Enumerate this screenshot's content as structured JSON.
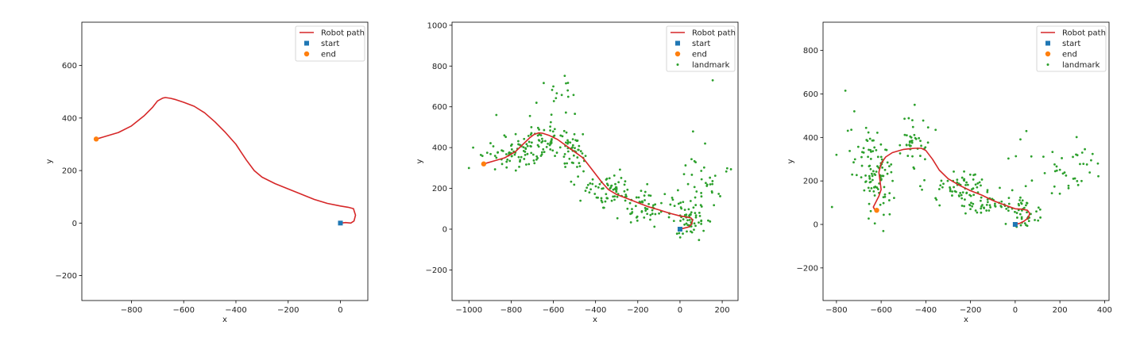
{
  "chart_data": [
    {
      "type": "line",
      "xlabel": "x",
      "ylabel": "y",
      "xlim": [
        -990,
        105
      ],
      "ylim": [
        -295,
        765
      ],
      "xticks": [
        -800,
        -600,
        -400,
        -200,
        0
      ],
      "xtick_labels": [
        "−800",
        "−600",
        "−400",
        "−200",
        "0"
      ],
      "yticks": [
        -200,
        0,
        200,
        400,
        600
      ],
      "ytick_labels": [
        "−200",
        "0",
        "200",
        "400",
        "600"
      ],
      "legend": [
        "Robot path",
        "start",
        "end"
      ],
      "legend_position": "top-right",
      "colors": {
        "path": "#d62728",
        "start": "#1f77b4",
        "end": "#ff7f0e",
        "landmark": "#2ca02c"
      },
      "series": [
        {
          "name": "Robot path",
          "x": [
            0,
            20,
            40,
            52,
            58,
            50,
            30,
            0,
            -50,
            -100,
            -150,
            -200,
            -250,
            -300,
            -330,
            -360,
            -380,
            -400,
            -440,
            -480,
            -520,
            -560,
            -600,
            -630,
            -650,
            -670,
            -680,
            -700,
            -720,
            -750,
            -800,
            -850,
            -900,
            -935
          ],
          "y": [
            0,
            2,
            0,
            8,
            30,
            55,
            60,
            65,
            75,
            90,
            110,
            130,
            150,
            175,
            200,
            240,
            270,
            300,
            345,
            385,
            420,
            445,
            460,
            470,
            475,
            478,
            476,
            465,
            440,
            410,
            370,
            345,
            330,
            320
          ]
        },
        {
          "name": "start",
          "x": [
            0
          ],
          "y": [
            0
          ]
        },
        {
          "name": "end",
          "x": [
            -935
          ],
          "y": [
            320
          ]
        }
      ]
    },
    {
      "type": "line",
      "xlabel": "x",
      "ylabel": "y",
      "xlim": [
        -1080,
        275
      ],
      "ylim": [
        -350,
        1015
      ],
      "xticks": [
        -1000,
        -800,
        -600,
        -400,
        -200,
        0,
        200
      ],
      "xtick_labels": [
        "−1000",
        "−800",
        "−600",
        "−400",
        "−200",
        "0",
        "200"
      ],
      "yticks": [
        -200,
        0,
        200,
        400,
        600,
        800,
        1000
      ],
      "ytick_labels": [
        "−200",
        "0",
        "200",
        "400",
        "600",
        "800",
        "1000"
      ],
      "legend": [
        "Robot path",
        "start",
        "end",
        "landmark"
      ],
      "legend_position": "top-right",
      "series": [
        {
          "name": "Robot path",
          "x": [
            0,
            20,
            40,
            55,
            60,
            52,
            30,
            0,
            -50,
            -100,
            -150,
            -200,
            -250,
            -300,
            -340,
            -370,
            -400,
            -430,
            -460,
            -500,
            -540,
            -580,
            -620,
            -650,
            -670,
            -690,
            -710,
            -740,
            -780,
            -830,
            -880,
            -930
          ],
          "y": [
            0,
            5,
            10,
            25,
            45,
            55,
            60,
            65,
            78,
            95,
            110,
            130,
            150,
            170,
            195,
            230,
            270,
            310,
            350,
            380,
            410,
            440,
            460,
            470,
            472,
            465,
            450,
            420,
            380,
            350,
            335,
            320
          ]
        },
        {
          "name": "start",
          "x": [
            0
          ],
          "y": [
            0
          ]
        },
        {
          "name": "end",
          "x": [
            -930
          ],
          "y": [
            320
          ]
        },
        {
          "name": "landmark",
          "clusters": [
            {
              "cx": -780,
              "cy": 370,
              "sx": 70,
              "sy": 40,
              "n": 70
            },
            {
              "cx": -620,
              "cy": 440,
              "sx": 60,
              "sy": 50,
              "n": 60
            },
            {
              "cx": -500,
              "cy": 380,
              "sx": 40,
              "sy": 50,
              "n": 40
            },
            {
              "cx": -330,
              "cy": 190,
              "sx": 80,
              "sy": 35,
              "n": 70
            },
            {
              "cx": -150,
              "cy": 110,
              "sx": 80,
              "sy": 35,
              "n": 60
            },
            {
              "cx": 50,
              "cy": 40,
              "sx": 40,
              "sy": 40,
              "n": 50
            },
            {
              "cx": 120,
              "cy": 200,
              "sx": 60,
              "sy": 90,
              "n": 40
            },
            {
              "cx": -560,
              "cy": 650,
              "sx": 50,
              "sy": 50,
              "n": 12
            }
          ],
          "extra_points": [
            [
              -1000,
              300
            ],
            [
              -870,
              560
            ],
            [
              -540,
              715
            ],
            [
              -600,
              700
            ],
            [
              155,
              730
            ],
            [
              -980,
              400
            ],
            [
              -680,
              620
            ]
          ]
        }
      ]
    },
    {
      "type": "line",
      "xlabel": "x",
      "ylabel": "y",
      "xlim": [
        -860,
        420
      ],
      "ylim": [
        -350,
        930
      ],
      "xticks": [
        -800,
        -600,
        -400,
        -200,
        0,
        200,
        400
      ],
      "xtick_labels": [
        "−800",
        "−600",
        "−400",
        "−200",
        "0",
        "200",
        "400"
      ],
      "yticks": [
        -200,
        0,
        200,
        400,
        600,
        800
      ],
      "ytick_labels": [
        "−200",
        "0",
        "200",
        "400",
        "600",
        "800"
      ],
      "legend": [
        "Robot path",
        "start",
        "end",
        "landmark"
      ],
      "legend_position": "top-right",
      "series": [
        {
          "name": "Robot path",
          "x": [
            0,
            20,
            40,
            58,
            65,
            55,
            30,
            0,
            -50,
            -100,
            -150,
            -200,
            -250,
            -300,
            -340,
            -370,
            -400,
            -420,
            -450,
            -500,
            -550,
            -580,
            -600,
            -610,
            -605,
            -600,
            -610,
            -625,
            -635,
            -630,
            -620
          ],
          "y": [
            0,
            5,
            15,
            30,
            50,
            65,
            70,
            72,
            90,
            110,
            135,
            155,
            180,
            210,
            250,
            300,
            340,
            350,
            350,
            345,
            330,
            310,
            280,
            240,
            200,
            160,
            130,
            100,
            80,
            70,
            65
          ]
        },
        {
          "name": "start",
          "x": [
            0
          ],
          "y": [
            0
          ]
        },
        {
          "name": "end",
          "x": [
            -620
          ],
          "y": [
            65
          ]
        },
        {
          "name": "landmark",
          "clusters": [
            {
              "cx": -610,
              "cy": 200,
              "sx": 40,
              "sy": 80,
              "n": 80
            },
            {
              "cx": -450,
              "cy": 380,
              "sx": 40,
              "sy": 60,
              "n": 40
            },
            {
              "cx": -250,
              "cy": 170,
              "sx": 70,
              "sy": 40,
              "n": 60
            },
            {
              "cx": -100,
              "cy": 100,
              "sx": 80,
              "sy": 30,
              "n": 50
            },
            {
              "cx": 40,
              "cy": 40,
              "sx": 40,
              "sy": 40,
              "n": 40
            },
            {
              "cx": 200,
              "cy": 250,
              "sx": 90,
              "sy": 60,
              "n": 40
            },
            {
              "cx": -680,
              "cy": 330,
              "sx": 50,
              "sy": 60,
              "n": 25
            }
          ],
          "extra_points": [
            [
              -760,
              615
            ],
            [
              -800,
              320
            ],
            [
              -820,
              80
            ],
            [
              -720,
              520
            ],
            [
              300,
              330
            ],
            [
              370,
              280
            ],
            [
              -450,
              550
            ]
          ]
        }
      ]
    }
  ]
}
